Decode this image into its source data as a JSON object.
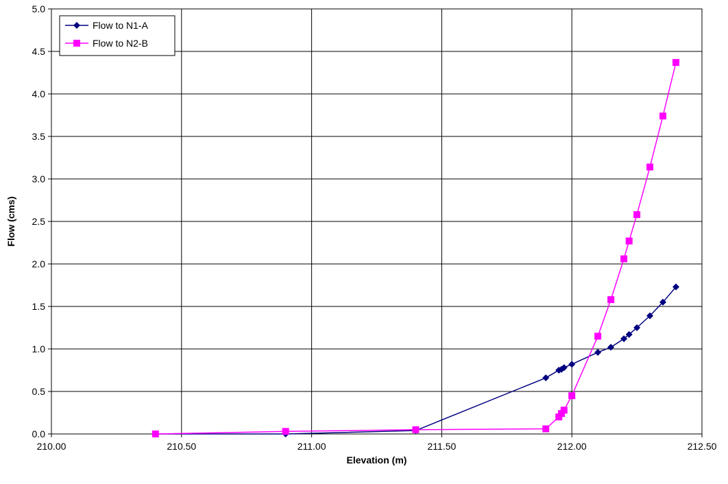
{
  "chart_data": {
    "type": "line",
    "title": "",
    "xlabel": "Elevation (m)",
    "ylabel": "Flow (cms)",
    "xlim": [
      210.0,
      212.5
    ],
    "ylim": [
      0.0,
      5.0
    ],
    "x_ticks": [
      "210.00",
      "210.50",
      "211.00",
      "211.50",
      "212.00",
      "212.50"
    ],
    "y_ticks": [
      "0.0",
      "0.5",
      "1.0",
      "1.5",
      "2.0",
      "2.5",
      "3.0",
      "3.5",
      "4.0",
      "4.5",
      "5.0"
    ],
    "grid": true,
    "legend": "top-left",
    "series": [
      {
        "name": "Flow to N1-A",
        "color": "#000080",
        "marker": "diamond",
        "points": [
          [
            210.4,
            0.0
          ],
          [
            210.9,
            0.0
          ],
          [
            211.4,
            0.04
          ],
          [
            211.9,
            0.66
          ],
          [
            211.95,
            0.75
          ],
          [
            211.96,
            0.76
          ],
          [
            211.97,
            0.78
          ],
          [
            212.0,
            0.82
          ],
          [
            212.1,
            0.96
          ],
          [
            212.15,
            1.02
          ],
          [
            212.2,
            1.12
          ],
          [
            212.22,
            1.17
          ],
          [
            212.25,
            1.25
          ],
          [
            212.3,
            1.39
          ],
          [
            212.35,
            1.55
          ],
          [
            212.4,
            1.73
          ]
        ]
      },
      {
        "name": "Flow to N2-B",
        "color": "#ff00ff",
        "marker": "square",
        "points": [
          [
            210.4,
            0.0
          ],
          [
            210.9,
            0.03
          ],
          [
            211.4,
            0.05
          ],
          [
            211.9,
            0.06
          ],
          [
            211.95,
            0.2
          ],
          [
            211.96,
            0.24
          ],
          [
            211.97,
            0.28
          ],
          [
            212.0,
            0.45
          ],
          [
            212.1,
            1.15
          ],
          [
            212.15,
            1.58
          ],
          [
            212.2,
            2.06
          ],
          [
            212.22,
            2.27
          ],
          [
            212.25,
            2.58
          ],
          [
            212.3,
            3.14
          ],
          [
            212.35,
            3.74
          ],
          [
            212.4,
            4.37
          ]
        ]
      }
    ]
  }
}
